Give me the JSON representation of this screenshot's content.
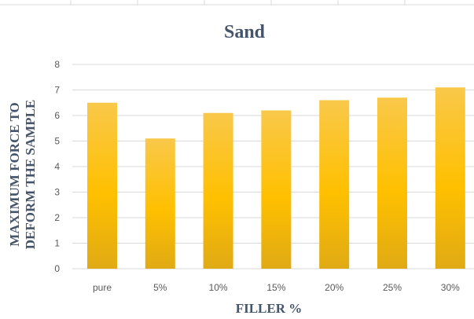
{
  "chart_data": {
    "type": "bar",
    "title": "Sand",
    "xlabel": "FILLER %",
    "ylabel": [
      "MAXIMUM FORCE TO",
      "DEFORM THE SAMPLE"
    ],
    "categories": [
      "pure",
      "5%",
      "10%",
      "15%",
      "20%",
      "25%",
      "30%"
    ],
    "values": [
      6.5,
      5.1,
      6.1,
      6.2,
      6.6,
      6.7,
      7.1
    ],
    "ylim": [
      0,
      8
    ],
    "yticks": [
      "0",
      "1",
      "2",
      "3",
      "4",
      "5",
      "6",
      "7",
      "8"
    ],
    "grid": true,
    "legend": "none",
    "colors": {
      "bar_top": "#f9c84a",
      "bar_mid": "#ffc000",
      "bar_bottom": "#e0aa14"
    }
  }
}
